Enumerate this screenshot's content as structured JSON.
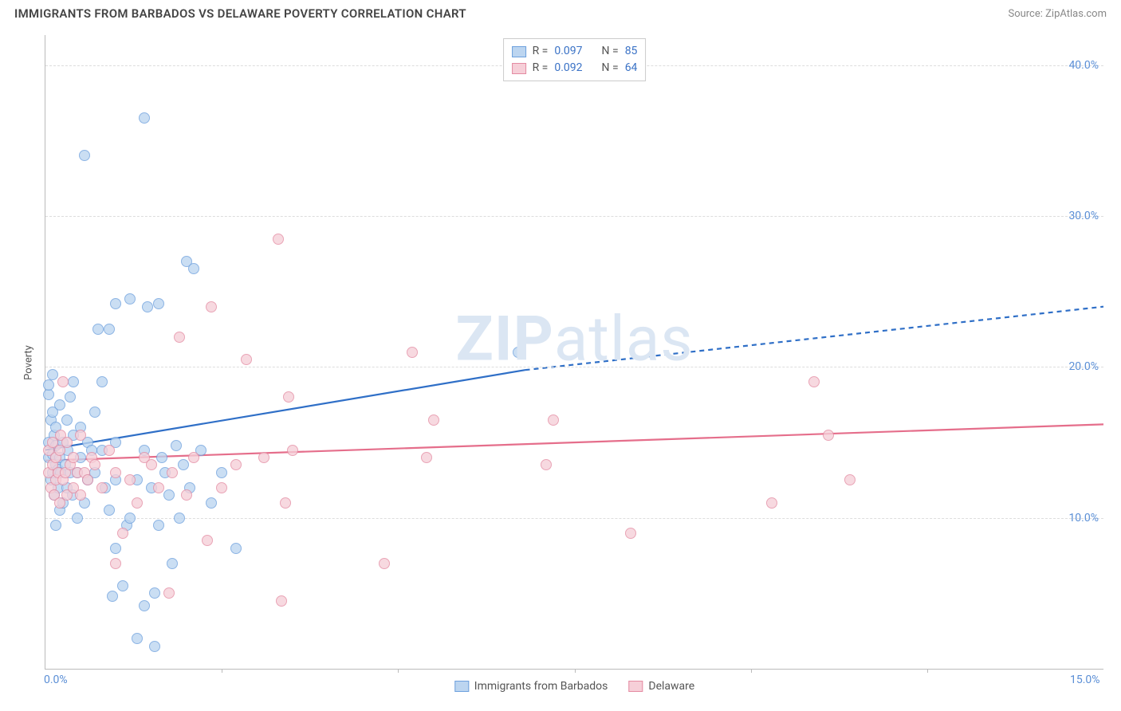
{
  "header": {
    "title": "IMMIGRANTS FROM BARBADOS VS DELAWARE POVERTY CORRELATION CHART",
    "source": "Source: ZipAtlas.com"
  },
  "watermark": {
    "bold": "ZIP",
    "light": "atlas"
  },
  "chart": {
    "type": "scatter",
    "ylabel": "Poverty",
    "xlim": [
      0,
      15
    ],
    "ylim": [
      0,
      42
    ],
    "xticks": [
      {
        "v": 0,
        "label": "0.0%"
      },
      {
        "v": 15,
        "label": "15.0%"
      }
    ],
    "xtick_marks": [
      2.5,
      5.0,
      7.5,
      10.0,
      12.5
    ],
    "yticks": [
      {
        "v": 10,
        "label": "10.0%"
      },
      {
        "v": 20,
        "label": "20.0%"
      },
      {
        "v": 30,
        "label": "30.0%"
      },
      {
        "v": 40,
        "label": "40.0%"
      }
    ],
    "grid_color": "#dddddd",
    "background_color": "#ffffff",
    "axis_color": "#bbbbbb",
    "tick_label_color": "#5b8fd6",
    "marker_radius": 7,
    "series": [
      {
        "name": "Immigrants from Barbados",
        "short": "barbados",
        "fill": "#bcd5f0",
        "stroke": "#6da0dd",
        "R_label": "R =",
        "R_value": "0.097",
        "N_label": "N =",
        "N_value": "85",
        "trend": {
          "x1": 0,
          "y1": 14.5,
          "x2_solid": 6.8,
          "y2_solid": 19.8,
          "x2": 15,
          "y2": 24.0,
          "color": "#2f6fc7",
          "width": 2.2,
          "dash": "6,5"
        },
        "points": [
          [
            0.05,
            14.0
          ],
          [
            0.05,
            15.0
          ],
          [
            0.05,
            18.2
          ],
          [
            0.05,
            18.8
          ],
          [
            0.08,
            12.5
          ],
          [
            0.08,
            16.5
          ],
          [
            0.1,
            13.0
          ],
          [
            0.1,
            14.2
          ],
          [
            0.1,
            17.0
          ],
          [
            0.1,
            19.5
          ],
          [
            0.12,
            11.5
          ],
          [
            0.12,
            15.5
          ],
          [
            0.15,
            13.5
          ],
          [
            0.15,
            14.8
          ],
          [
            0.15,
            16.0
          ],
          [
            0.18,
            12.0
          ],
          [
            0.18,
            13.2
          ],
          [
            0.2,
            10.5
          ],
          [
            0.2,
            14.0
          ],
          [
            0.2,
            17.5
          ],
          [
            0.22,
            13.0
          ],
          [
            0.25,
            11.0
          ],
          [
            0.25,
            15.0
          ],
          [
            0.28,
            13.5
          ],
          [
            0.3,
            12.0
          ],
          [
            0.3,
            16.5
          ],
          [
            0.32,
            14.5
          ],
          [
            0.35,
            13.0
          ],
          [
            0.35,
            18.0
          ],
          [
            0.38,
            11.5
          ],
          [
            0.4,
            15.5
          ],
          [
            0.4,
            19.0
          ],
          [
            0.45,
            13.0
          ],
          [
            0.5,
            14.0
          ],
          [
            0.5,
            16.0
          ],
          [
            0.55,
            11.0
          ],
          [
            0.6,
            12.5
          ],
          [
            0.6,
            15.0
          ],
          [
            0.65,
            14.5
          ],
          [
            0.7,
            13.0
          ],
          [
            0.7,
            17.0
          ],
          [
            0.75,
            22.5
          ],
          [
            0.8,
            14.5
          ],
          [
            0.8,
            19.0
          ],
          [
            0.85,
            12.0
          ],
          [
            0.9,
            10.5
          ],
          [
            0.9,
            22.5
          ],
          [
            0.95,
            4.8
          ],
          [
            1.0,
            8.0
          ],
          [
            1.0,
            12.5
          ],
          [
            1.0,
            15.0
          ],
          [
            1.0,
            24.2
          ],
          [
            1.1,
            5.5
          ],
          [
            1.15,
            9.5
          ],
          [
            1.2,
            10.0
          ],
          [
            1.2,
            24.5
          ],
          [
            1.3,
            12.5
          ],
          [
            1.4,
            4.2
          ],
          [
            1.4,
            14.5
          ],
          [
            1.4,
            36.5
          ],
          [
            1.45,
            24.0
          ],
          [
            1.5,
            12.0
          ],
          [
            1.55,
            1.5
          ],
          [
            1.55,
            5.0
          ],
          [
            1.6,
            9.5
          ],
          [
            1.6,
            24.2
          ],
          [
            1.65,
            14.0
          ],
          [
            1.7,
            13.0
          ],
          [
            1.75,
            11.5
          ],
          [
            1.8,
            7.0
          ],
          [
            1.85,
            14.8
          ],
          [
            1.9,
            10.0
          ],
          [
            1.95,
            13.5
          ],
          [
            2.0,
            27.0
          ],
          [
            2.05,
            12.0
          ],
          [
            2.1,
            26.5
          ],
          [
            2.2,
            14.5
          ],
          [
            2.35,
            11.0
          ],
          [
            2.5,
            13.0
          ],
          [
            2.7,
            8.0
          ],
          [
            0.55,
            34.0
          ],
          [
            0.15,
            9.5
          ],
          [
            0.45,
            10.0
          ],
          [
            1.3,
            2.0
          ],
          [
            6.7,
            21.0
          ]
        ]
      },
      {
        "name": "Delaware",
        "short": "delaware",
        "fill": "#f6cfd8",
        "stroke": "#e48ba2",
        "R_label": "R =",
        "R_value": "0.092",
        "N_label": "N =",
        "N_value": "64",
        "trend": {
          "x1": 0,
          "y1": 13.8,
          "x2_solid": 15,
          "y2_solid": 16.2,
          "x2": 15,
          "y2": 16.2,
          "color": "#e56e8b",
          "width": 2.2,
          "dash": ""
        },
        "points": [
          [
            0.05,
            13.0
          ],
          [
            0.05,
            14.5
          ],
          [
            0.08,
            12.0
          ],
          [
            0.1,
            13.5
          ],
          [
            0.1,
            15.0
          ],
          [
            0.12,
            11.5
          ],
          [
            0.15,
            12.5
          ],
          [
            0.15,
            14.0
          ],
          [
            0.18,
            13.0
          ],
          [
            0.2,
            11.0
          ],
          [
            0.2,
            14.5
          ],
          [
            0.22,
            15.5
          ],
          [
            0.25,
            12.5
          ],
          [
            0.25,
            19.0
          ],
          [
            0.28,
            13.0
          ],
          [
            0.3,
            11.5
          ],
          [
            0.3,
            15.0
          ],
          [
            0.35,
            13.5
          ],
          [
            0.4,
            12.0
          ],
          [
            0.4,
            14.0
          ],
          [
            0.45,
            13.0
          ],
          [
            0.5,
            11.5
          ],
          [
            0.5,
            15.5
          ],
          [
            0.55,
            13.0
          ],
          [
            0.6,
            12.5
          ],
          [
            0.65,
            14.0
          ],
          [
            0.7,
            13.5
          ],
          [
            0.8,
            12.0
          ],
          [
            0.9,
            14.5
          ],
          [
            1.0,
            7.0
          ],
          [
            1.0,
            13.0
          ],
          [
            1.1,
            9.0
          ],
          [
            1.2,
            12.5
          ],
          [
            1.3,
            11.0
          ],
          [
            1.4,
            14.0
          ],
          [
            1.5,
            13.5
          ],
          [
            1.6,
            12.0
          ],
          [
            1.75,
            5.0
          ],
          [
            1.8,
            13.0
          ],
          [
            1.9,
            22.0
          ],
          [
            2.0,
            11.5
          ],
          [
            2.1,
            14.0
          ],
          [
            2.3,
            8.5
          ],
          [
            2.35,
            24.0
          ],
          [
            2.5,
            12.0
          ],
          [
            2.7,
            13.5
          ],
          [
            2.85,
            20.5
          ],
          [
            3.1,
            14.0
          ],
          [
            3.3,
            28.5
          ],
          [
            3.35,
            4.5
          ],
          [
            3.4,
            11.0
          ],
          [
            3.45,
            18.0
          ],
          [
            3.5,
            14.5
          ],
          [
            4.8,
            7.0
          ],
          [
            5.2,
            21.0
          ],
          [
            5.4,
            14.0
          ],
          [
            5.5,
            16.5
          ],
          [
            7.1,
            13.5
          ],
          [
            7.2,
            16.5
          ],
          [
            8.3,
            9.0
          ],
          [
            10.3,
            11.0
          ],
          [
            10.9,
            19.0
          ],
          [
            11.1,
            15.5
          ],
          [
            11.4,
            12.5
          ]
        ]
      }
    ]
  }
}
